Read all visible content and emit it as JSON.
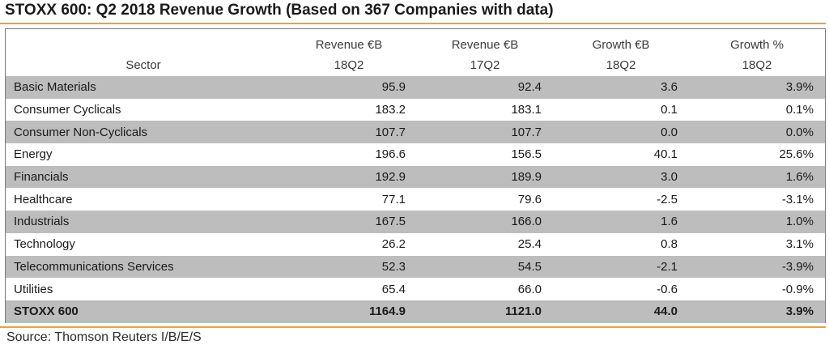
{
  "title": "STOXX 600: Q2 2018 Revenue Growth (Based on 367 Companies with data)",
  "header": {
    "row1": [
      "",
      "Revenue €B",
      "Revenue €B",
      "Growth €B",
      "Growth %"
    ],
    "row2": [
      "Sector",
      "18Q2",
      "17Q2",
      "18Q2",
      "18Q2"
    ]
  },
  "rows": [
    {
      "sector": "Basic Materials",
      "rev18": "95.9",
      "rev17": "92.4",
      "growth_eur": "3.6",
      "growth_pct": "3.9%"
    },
    {
      "sector": "Consumer Cyclicals",
      "rev18": "183.2",
      "rev17": "183.1",
      "growth_eur": "0.1",
      "growth_pct": "0.1%"
    },
    {
      "sector": "Consumer Non-Cyclicals",
      "rev18": "107.7",
      "rev17": "107.7",
      "growth_eur": "0.0",
      "growth_pct": "0.0%"
    },
    {
      "sector": "Energy",
      "rev18": "196.6",
      "rev17": "156.5",
      "growth_eur": "40.1",
      "growth_pct": "25.6%"
    },
    {
      "sector": "Financials",
      "rev18": "192.9",
      "rev17": "189.9",
      "growth_eur": "3.0",
      "growth_pct": "1.6%"
    },
    {
      "sector": "Healthcare",
      "rev18": "77.1",
      "rev17": "79.6",
      "growth_eur": "-2.5",
      "growth_pct": "-3.1%"
    },
    {
      "sector": "Industrials",
      "rev18": "167.5",
      "rev17": "166.0",
      "growth_eur": "1.6",
      "growth_pct": "1.0%"
    },
    {
      "sector": "Technology",
      "rev18": "26.2",
      "rev17": "25.4",
      "growth_eur": "0.8",
      "growth_pct": "3.1%"
    },
    {
      "sector": "Telecommunications Services",
      "rev18": "52.3",
      "rev17": "54.5",
      "growth_eur": "-2.1",
      "growth_pct": "-3.9%"
    },
    {
      "sector": "Utilities",
      "rev18": "65.4",
      "rev17": "66.0",
      "growth_eur": "-0.6",
      "growth_pct": "-0.9%"
    }
  ],
  "total": {
    "sector": "STOXX 600",
    "rev18": "1164.9",
    "rev17": "1121.0",
    "growth_eur": "44.0",
    "growth_pct": "3.9%"
  },
  "source": "Source: Thomson Reuters I/B/E/S",
  "colors": {
    "accent_rule": "#f0a033",
    "row_shade": "#bdbdbd"
  }
}
